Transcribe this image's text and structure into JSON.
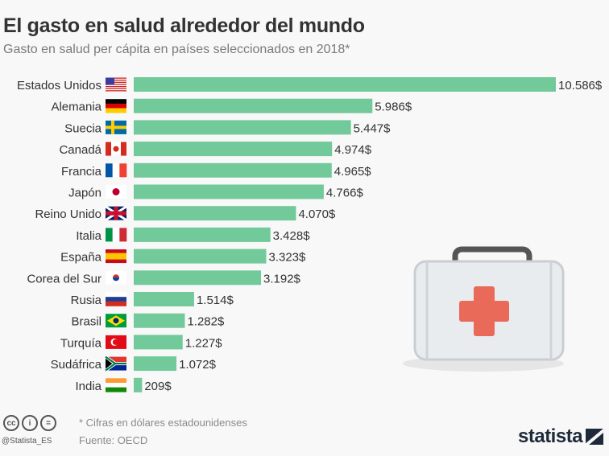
{
  "title": "El gasto en salud alrededor del mundo",
  "subtitle": "Gasto en salud per cápita en países seleccionados en 2018*",
  "chart_data": {
    "type": "bar",
    "orientation": "horizontal",
    "categories": [
      "Estados Unidos",
      "Alemania",
      "Suecia",
      "Canadá",
      "Francia",
      "Japón",
      "Reino Unido",
      "Italia",
      "España",
      "Corea del Sur",
      "Rusia",
      "Brasil",
      "Turquía",
      "Sudáfrica",
      "India"
    ],
    "flags": [
      "us",
      "de",
      "se",
      "ca",
      "fr",
      "jp",
      "gb",
      "it",
      "es",
      "kr",
      "ru",
      "br",
      "tr",
      "za",
      "in"
    ],
    "values": [
      10586,
      5986,
      5447,
      4974,
      4965,
      4766,
      4070,
      3428,
      3323,
      3192,
      1514,
      1282,
      1227,
      1072,
      209
    ],
    "data_labels": [
      "10.586$",
      "5.986$",
      "5.447$",
      "4.974$",
      "4.965$",
      "4.766$",
      "4.070$",
      "3.428$",
      "3.323$",
      "3.192$",
      "1.514$",
      "1.282$",
      "1.227$",
      "1.072$",
      "209$"
    ],
    "bar_color": "#72c99a",
    "grid": false
  },
  "footer": {
    "note": "* Cifras en dólares estadounidenses",
    "source": "Fuente: OECD",
    "handle": "@Statista_ES",
    "license_icons": [
      "cc",
      "by",
      "nd"
    ],
    "logo": "statista"
  }
}
